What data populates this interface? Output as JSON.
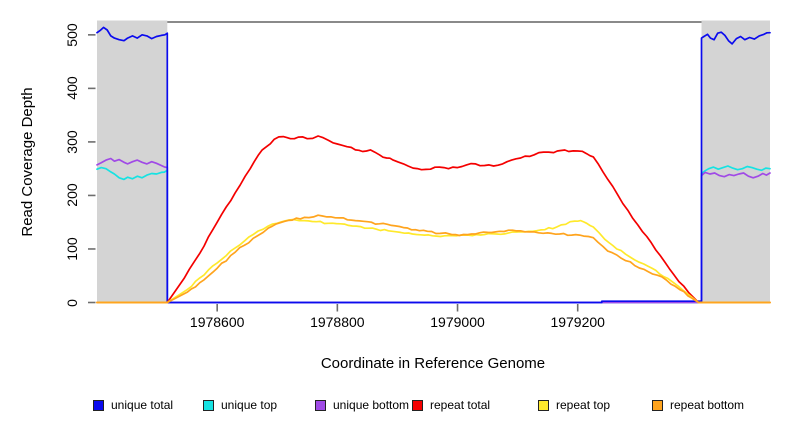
{
  "chart_data": {
    "type": "line",
    "title": "",
    "xlabel": "Coordinate in Reference Genome",
    "ylabel": "Read Coverage Depth",
    "xlim": [
      1978400,
      1979520
    ],
    "ylim": [
      0,
      524
    ],
    "grid": false,
    "legend_position": "bottom",
    "x_ticks": [
      {
        "value": 1978600,
        "label": "1978600"
      },
      {
        "value": 1978800,
        "label": "1978800"
      },
      {
        "value": 1979000,
        "label": "1979000"
      },
      {
        "value": 1979200,
        "label": "1979200"
      }
    ],
    "y_ticks": [
      {
        "value": 0,
        "label": "0"
      },
      {
        "value": 100,
        "label": "100"
      },
      {
        "value": 200,
        "label": "200"
      },
      {
        "value": 300,
        "label": "300"
      },
      {
        "value": 400,
        "label": "400"
      },
      {
        "value": 500,
        "label": "500"
      }
    ],
    "colors": {
      "box": "#454545",
      "ticks": "#6e6e6e",
      "shade": "#d4d4d4",
      "text": "#000000",
      "background": "#ffffff"
    },
    "shaded_regions": [
      {
        "x0": 1978400,
        "x1": 1978517
      },
      {
        "x0": 1979406,
        "x1": 1979520
      }
    ],
    "series": [
      {
        "name": "unique total",
        "color": "#0b0bee",
        "points": [
          [
            1978400,
            504
          ],
          [
            1978405,
            508
          ],
          [
            1978411,
            514
          ],
          [
            1978417,
            509
          ],
          [
            1978423,
            498
          ],
          [
            1978429,
            494
          ],
          [
            1978437,
            491
          ],
          [
            1978445,
            489
          ],
          [
            1978451,
            494
          ],
          [
            1978459,
            498
          ],
          [
            1978467,
            494
          ],
          [
            1978475,
            500
          ],
          [
            1978483,
            498
          ],
          [
            1978491,
            493
          ],
          [
            1978499,
            497
          ],
          [
            1978507,
            499
          ],
          [
            1978513,
            500
          ],
          [
            1978517,
            503
          ],
          [
            1978517,
            0
          ],
          [
            1979240,
            0
          ],
          [
            1979240,
            2.5
          ],
          [
            1979406,
            2.5
          ],
          [
            1979406,
            494
          ],
          [
            1979410,
            497
          ],
          [
            1979416,
            501
          ],
          [
            1979421,
            494
          ],
          [
            1979427,
            491
          ],
          [
            1979433,
            503
          ],
          [
            1979439,
            505
          ],
          [
            1979445,
            499
          ],
          [
            1979451,
            489
          ],
          [
            1979457,
            483
          ],
          [
            1979464,
            493
          ],
          [
            1979471,
            497
          ],
          [
            1979478,
            491
          ],
          [
            1979486,
            495
          ],
          [
            1979494,
            492
          ],
          [
            1979502,
            498
          ],
          [
            1979510,
            501
          ],
          [
            1979520,
            504
          ]
        ]
      },
      {
        "name": "unique top",
        "color": "#16e2e2",
        "points": [
          [
            1978400,
            249
          ],
          [
            1978407,
            252
          ],
          [
            1978415,
            250
          ],
          [
            1978423,
            244
          ],
          [
            1978429,
            240
          ],
          [
            1978437,
            233
          ],
          [
            1978445,
            230
          ],
          [
            1978451,
            234
          ],
          [
            1978459,
            231
          ],
          [
            1978467,
            236
          ],
          [
            1978475,
            233
          ],
          [
            1978483,
            238
          ],
          [
            1978491,
            241
          ],
          [
            1978499,
            240
          ],
          [
            1978507,
            243
          ],
          [
            1978517,
            247
          ],
          [
            1978517,
            0
          ],
          [
            1979406,
            0
          ],
          [
            1979406,
            241
          ],
          [
            1979412,
            246
          ],
          [
            1979418,
            250
          ],
          [
            1979426,
            253
          ],
          [
            1979434,
            249
          ],
          [
            1979442,
            252
          ],
          [
            1979450,
            255
          ],
          [
            1979458,
            251
          ],
          [
            1979466,
            248
          ],
          [
            1979474,
            250
          ],
          [
            1979482,
            254
          ],
          [
            1979490,
            252
          ],
          [
            1979498,
            249
          ],
          [
            1979506,
            247
          ],
          [
            1979513,
            251
          ],
          [
            1979520,
            250
          ]
        ]
      },
      {
        "name": "unique bottom",
        "color": "#a04ae6",
        "points": [
          [
            1978400,
            257
          ],
          [
            1978407,
            261
          ],
          [
            1978415,
            266
          ],
          [
            1978423,
            269
          ],
          [
            1978429,
            264
          ],
          [
            1978437,
            267
          ],
          [
            1978445,
            262
          ],
          [
            1978451,
            259
          ],
          [
            1978459,
            263
          ],
          [
            1978467,
            266
          ],
          [
            1978475,
            262
          ],
          [
            1978483,
            259
          ],
          [
            1978491,
            263
          ],
          [
            1978499,
            260
          ],
          [
            1978507,
            256
          ],
          [
            1978517,
            252
          ],
          [
            1978517,
            0
          ],
          [
            1979406,
            0
          ],
          [
            1979406,
            237
          ],
          [
            1979412,
            243
          ],
          [
            1979420,
            240
          ],
          [
            1979428,
            242
          ],
          [
            1979436,
            237
          ],
          [
            1979444,
            235
          ],
          [
            1979452,
            239
          ],
          [
            1979460,
            237
          ],
          [
            1979468,
            240
          ],
          [
            1979476,
            242
          ],
          [
            1979484,
            236
          ],
          [
            1979492,
            233
          ],
          [
            1979500,
            236
          ],
          [
            1979508,
            241
          ],
          [
            1979514,
            238
          ],
          [
            1979520,
            242
          ]
        ]
      },
      {
        "name": "repeat total",
        "color": "#f40000",
        "points": [
          [
            1978400,
            0
          ],
          [
            1978517,
            0
          ],
          [
            1978545,
            45
          ],
          [
            1978571,
            92
          ],
          [
            1978600,
            150
          ],
          [
            1978630,
            205
          ],
          [
            1978655,
            250
          ],
          [
            1978675,
            285
          ],
          [
            1978695,
            305
          ],
          [
            1978710,
            310
          ],
          [
            1978722,
            306
          ],
          [
            1978735,
            309
          ],
          [
            1978750,
            306
          ],
          [
            1978768,
            311
          ],
          [
            1978785,
            303
          ],
          [
            1978800,
            296
          ],
          [
            1978816,
            291
          ],
          [
            1978830,
            285
          ],
          [
            1978842,
            282
          ],
          [
            1978855,
            285
          ],
          [
            1978870,
            276
          ],
          [
            1978882,
            270
          ],
          [
            1978893,
            266
          ],
          [
            1978910,
            259
          ],
          [
            1978926,
            251
          ],
          [
            1978940,
            248
          ],
          [
            1978955,
            249
          ],
          [
            1978970,
            253
          ],
          [
            1978985,
            250
          ],
          [
            1979000,
            252
          ],
          [
            1979015,
            257
          ],
          [
            1979030,
            259
          ],
          [
            1979045,
            256
          ],
          [
            1979060,
            255
          ],
          [
            1979075,
            259
          ],
          [
            1979090,
            266
          ],
          [
            1979105,
            270
          ],
          [
            1979120,
            273
          ],
          [
            1979143,
            281
          ],
          [
            1979160,
            280
          ],
          [
            1979172,
            284
          ],
          [
            1979185,
            282
          ],
          [
            1979200,
            283
          ],
          [
            1979215,
            278
          ],
          [
            1979226,
            272
          ],
          [
            1979250,
            230
          ],
          [
            1979275,
            185
          ],
          [
            1979300,
            145
          ],
          [
            1979330,
            98
          ],
          [
            1979360,
            52
          ],
          [
            1979385,
            18
          ],
          [
            1979401,
            0
          ],
          [
            1979520,
            0
          ]
        ]
      },
      {
        "name": "repeat top",
        "color": "#ffe92c",
        "points": [
          [
            1978400,
            0
          ],
          [
            1978517,
            0
          ],
          [
            1978550,
            24
          ],
          [
            1978571,
            46
          ],
          [
            1978600,
            74
          ],
          [
            1978630,
            102
          ],
          [
            1978660,
            127
          ],
          [
            1978685,
            143
          ],
          [
            1978705,
            150
          ],
          [
            1978727,
            155
          ],
          [
            1978745,
            153
          ],
          [
            1978765,
            151
          ],
          [
            1978785,
            148
          ],
          [
            1978805,
            147
          ],
          [
            1978825,
            143
          ],
          [
            1978845,
            139
          ],
          [
            1978865,
            137
          ],
          [
            1978885,
            134
          ],
          [
            1978905,
            131
          ],
          [
            1978925,
            128
          ],
          [
            1978945,
            126
          ],
          [
            1978965,
            124
          ],
          [
            1978985,
            125
          ],
          [
            1979005,
            126
          ],
          [
            1979025,
            125
          ],
          [
            1979045,
            127
          ],
          [
            1979065,
            128
          ],
          [
            1979085,
            130
          ],
          [
            1979105,
            132
          ],
          [
            1979125,
            133
          ],
          [
            1979145,
            136
          ],
          [
            1979165,
            141
          ],
          [
            1979180,
            146
          ],
          [
            1979195,
            152
          ],
          [
            1979205,
            153
          ],
          [
            1979215,
            148
          ],
          [
            1979226,
            141
          ],
          [
            1979245,
            118
          ],
          [
            1979265,
            100
          ],
          [
            1979287,
            85
          ],
          [
            1979310,
            72
          ],
          [
            1979330,
            60
          ],
          [
            1979350,
            45
          ],
          [
            1979375,
            23
          ],
          [
            1979401,
            0
          ],
          [
            1979520,
            0
          ]
        ]
      },
      {
        "name": "repeat bottom",
        "color": "#ffa41e",
        "points": [
          [
            1978400,
            0
          ],
          [
            1978517,
            0
          ],
          [
            1978550,
            19
          ],
          [
            1978571,
            37
          ],
          [
            1978600,
            64
          ],
          [
            1978630,
            94
          ],
          [
            1978660,
            120
          ],
          [
            1978685,
            139
          ],
          [
            1978705,
            149
          ],
          [
            1978725,
            154
          ],
          [
            1978745,
            159
          ],
          [
            1978768,
            163
          ],
          [
            1978790,
            160
          ],
          [
            1978810,
            158
          ],
          [
            1978830,
            153
          ],
          [
            1978850,
            151
          ],
          [
            1978870,
            147
          ],
          [
            1978890,
            144
          ],
          [
            1978910,
            140
          ],
          [
            1978930,
            136
          ],
          [
            1978950,
            133
          ],
          [
            1978971,
            129
          ],
          [
            1978990,
            127
          ],
          [
            1979010,
            127
          ],
          [
            1979030,
            128
          ],
          [
            1979050,
            131
          ],
          [
            1979070,
            133
          ],
          [
            1979085,
            135
          ],
          [
            1979105,
            134
          ],
          [
            1979127,
            132
          ],
          [
            1979150,
            130
          ],
          [
            1979170,
            128
          ],
          [
            1979190,
            126
          ],
          [
            1979210,
            124
          ],
          [
            1979226,
            121
          ],
          [
            1979250,
            96
          ],
          [
            1979280,
            78
          ],
          [
            1979310,
            62
          ],
          [
            1979340,
            48
          ],
          [
            1979370,
            24
          ],
          [
            1979390,
            8
          ],
          [
            1979401,
            0
          ],
          [
            1979520,
            0
          ]
        ]
      }
    ]
  }
}
